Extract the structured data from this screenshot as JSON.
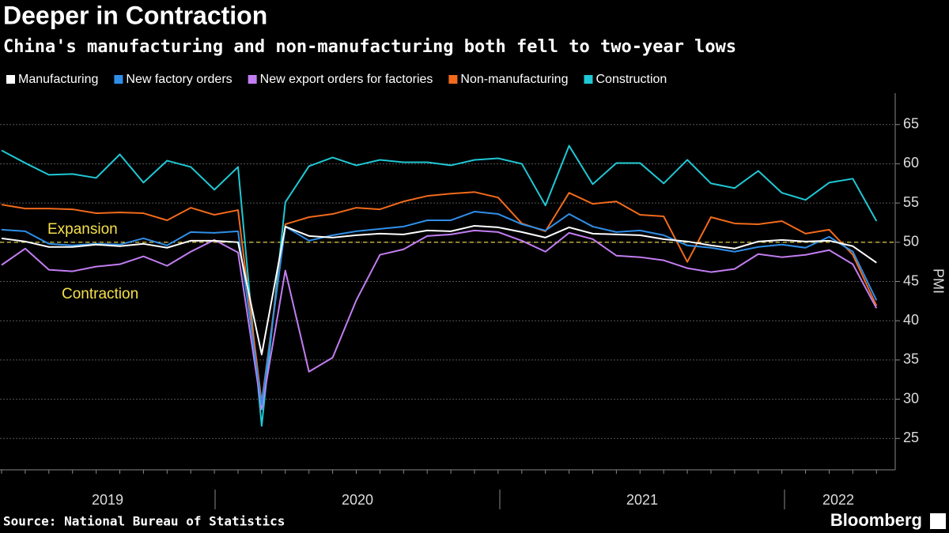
{
  "chart_data": {
    "type": "line",
    "title": "Deeper in Contraction",
    "subtitle": "China's manufacturing and non-manufacturing both fell to two-year lows",
    "y_label": "PMI",
    "source": "Source: National Bureau of Statistics",
    "brand": "Bloomberg",
    "annotations": [
      "Expansion",
      "Contraction"
    ],
    "reference_line": 50,
    "year_labels": [
      "2019",
      "2020",
      "2021",
      "2022"
    ],
    "categories": [
      null,
      null,
      null,
      null,
      null,
      null,
      null,
      null,
      null,
      null,
      null,
      null,
      null,
      null,
      null,
      null,
      null,
      null,
      null,
      null,
      null,
      null,
      null,
      null,
      null,
      null,
      null,
      null,
      null,
      null,
      null,
      null,
      null,
      null,
      null,
      null,
      null,
      null
    ],
    "series": [
      {
        "name": "Manufacturing",
        "color": "#ffffff",
        "values": [
          50.5,
          50.1,
          49.4,
          49.4,
          49.7,
          49.5,
          49.8,
          49.3,
          50.2,
          50.2,
          50.0,
          35.7,
          52.0,
          50.8,
          50.6,
          50.9,
          51.1,
          51.0,
          51.5,
          51.4,
          52.1,
          51.9,
          51.3,
          50.6,
          51.9,
          51.1,
          51.0,
          50.9,
          50.4,
          50.1,
          49.6,
          49.2,
          50.1,
          50.3,
          50.1,
          50.2,
          49.5,
          47.4
        ]
      },
      {
        "name": "New factory orders",
        "color": "#2f8fe8",
        "values": [
          51.6,
          51.4,
          49.8,
          49.6,
          49.8,
          49.7,
          50.5,
          49.6,
          51.3,
          51.2,
          51.4,
          29.3,
          52.0,
          50.2,
          50.9,
          51.4,
          51.7,
          52.0,
          52.8,
          52.8,
          53.9,
          53.6,
          52.3,
          51.5,
          53.6,
          52.0,
          51.3,
          51.5,
          50.9,
          49.6,
          49.3,
          48.8,
          49.4,
          49.7,
          49.3,
          50.7,
          48.8,
          42.6
        ]
      },
      {
        "name": "New export orders for factories",
        "color": "#c27df2",
        "values": [
          47.1,
          49.2,
          46.5,
          46.3,
          46.9,
          47.2,
          48.2,
          47.0,
          48.8,
          50.3,
          48.7,
          28.7,
          46.4,
          33.5,
          35.3,
          42.6,
          48.4,
          49.1,
          50.8,
          51.0,
          51.5,
          51.3,
          50.2,
          48.8,
          51.2,
          50.4,
          48.3,
          48.1,
          47.7,
          46.7,
          46.2,
          46.6,
          48.5,
          48.1,
          48.4,
          49.0,
          47.2,
          41.6
        ]
      },
      {
        "name": "Non-manufacturing",
        "color": "#f26a1b",
        "values": [
          54.8,
          54.3,
          54.3,
          54.2,
          53.7,
          53.8,
          53.7,
          52.8,
          54.4,
          53.5,
          54.1,
          29.6,
          52.3,
          53.2,
          53.6,
          54.4,
          54.2,
          55.2,
          55.9,
          56.2,
          56.4,
          55.7,
          52.4,
          51.4,
          56.3,
          54.9,
          55.2,
          53.5,
          53.3,
          47.5,
          53.2,
          52.4,
          52.3,
          52.7,
          51.1,
          51.6,
          48.4,
          41.9
        ]
      },
      {
        "name": "Construction",
        "color": "#1fc8d4",
        "values": [
          61.7,
          60.1,
          58.6,
          58.7,
          58.2,
          61.2,
          57.6,
          60.4,
          59.6,
          56.7,
          59.6,
          26.6,
          55.1,
          59.7,
          60.8,
          59.8,
          60.5,
          60.2,
          60.2,
          59.8,
          60.5,
          60.7,
          60.0,
          54.7,
          62.3,
          57.4,
          60.1,
          60.1,
          57.5,
          60.5,
          57.5,
          56.9,
          59.1,
          56.3,
          55.4,
          57.6,
          58.1,
          52.7
        ]
      }
    ],
    "ylim": [
      21,
      69
    ],
    "yticks": [
      25,
      30,
      35,
      40,
      45,
      50,
      55,
      60,
      65
    ],
    "grid": true
  }
}
